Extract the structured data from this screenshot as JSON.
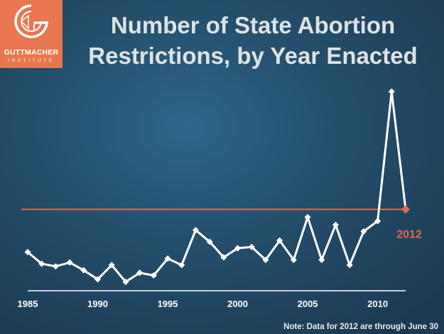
{
  "logo": {
    "name": "GUTTMACHER",
    "subtitle": "INSTITUTE",
    "colors": {
      "background": "#e8764e",
      "mark": "#ffffff"
    }
  },
  "title_line1": "Number of State Abortion",
  "title_line2": "Restrictions, by Year Enacted",
  "note": "Note:  Data for 2012 are through June 30",
  "colors": {
    "line": "#ffffff",
    "reference_line": "#e06a4c",
    "highlight": "#e06a4c",
    "axis": "#ffffff",
    "tick_label": "#ffffff"
  },
  "chart_data": {
    "type": "line",
    "x": [
      1985,
      1986,
      1987,
      1988,
      1989,
      1990,
      1991,
      1992,
      1993,
      1994,
      1995,
      1996,
      1997,
      1998,
      1999,
      2000,
      2001,
      2002,
      2003,
      2004,
      2005,
      2006,
      2007,
      2008,
      2009,
      2010,
      2011,
      2012
    ],
    "y": [
      26,
      17,
      15,
      18,
      12,
      5,
      16,
      3,
      10,
      8,
      21,
      16,
      43,
      34,
      22,
      29,
      30,
      20,
      35,
      20,
      53,
      20,
      47,
      16,
      42,
      50,
      150,
      59
    ],
    "x_ticks": [
      1985,
      1990,
      1995,
      2000,
      2005,
      2010
    ],
    "xlim": [
      1985,
      2012
    ],
    "ylim": [
      0,
      155
    ],
    "highlight_point": {
      "x": 2012,
      "label": "2012"
    },
    "reference_line": {
      "y": 59
    },
    "title": "Number of State Abortion Restrictions, by Year Enacted",
    "grid": false
  }
}
